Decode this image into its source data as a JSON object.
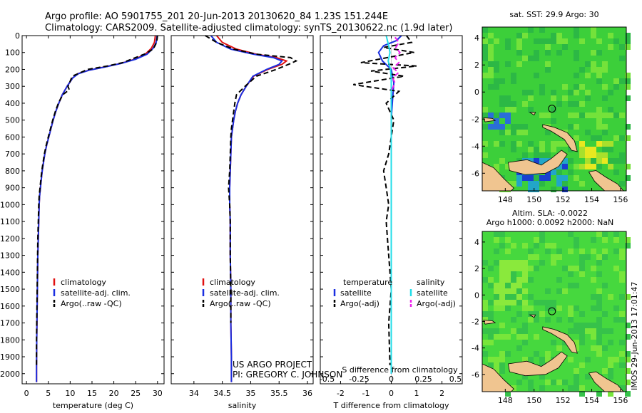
{
  "title": {
    "line1": "Argo profile: AO 5901755_201 20-Jun-2013 20130620_84 1.23S 151.244E",
    "line2": "Climatology: CARS2009. Satellite-adjusted climatology: synTS_20130622.nc (1.9d later)"
  },
  "credit": {
    "project": "US ARGO PROJECT",
    "pi": "PI: GREGORY C. JOHNSON"
  },
  "stamp": "IMOS 29-Jun-2013 17:01:47",
  "colors": {
    "climatology": "#e01010",
    "satellite": "#1a2ee0",
    "argo": "#000000",
    "sal_satellite": "#22dde8",
    "sal_argo": "#ee22ee",
    "land": "#f0c590",
    "ocean_mid": "#3fd13c"
  },
  "depth_axis": {
    "ticks": [
      0,
      100,
      200,
      300,
      400,
      500,
      600,
      700,
      800,
      900,
      1000,
      1100,
      1200,
      1300,
      1400,
      1500,
      1600,
      1700,
      1800,
      1900,
      2000
    ],
    "range": [
      0,
      2060
    ]
  },
  "chart_data": [
    {
      "type": "line",
      "title": "",
      "xlabel": "temperature (deg C)",
      "ylabel": "",
      "xlim": [
        -1,
        31.5
      ],
      "ylim": [
        2060,
        0
      ],
      "xticks": [
        0,
        5,
        10,
        15,
        20,
        25,
        30
      ],
      "legend": [
        "climatology",
        "satellite-adj. clim.",
        "Argo(..raw -QC)"
      ],
      "legend_position": "lower-center",
      "series": [
        {
          "name": "climatology",
          "x": [
            29.5,
            29.3,
            28.6,
            27.2,
            24.8,
            21.5,
            18.0,
            14.2,
            11.8,
            10.6,
            9.3,
            8.2,
            7.4,
            6.7,
            6.1,
            5.6,
            5.1,
            4.6,
            4.2,
            3.9,
            3.6,
            3.4,
            3.2,
            3.0,
            2.9,
            2.8,
            2.7,
            2.6,
            2.55,
            2.5,
            2.45,
            2.4,
            2.35,
            2.3,
            2.3
          ],
          "y": [
            0,
            40,
            75,
            110,
            140,
            165,
            185,
            205,
            225,
            250,
            300,
            350,
            400,
            450,
            500,
            550,
            600,
            650,
            700,
            750,
            800,
            850,
            900,
            950,
            1000,
            1100,
            1200,
            1300,
            1400,
            1500,
            1600,
            1700,
            1800,
            1950,
            2050
          ]
        },
        {
          "name": "satellite-adj. clim.",
          "x": [
            29.9,
            29.7,
            29.0,
            27.6,
            25.0,
            21.6,
            18.1,
            14.3,
            11.9,
            10.6,
            9.3,
            8.2,
            7.4,
            6.7,
            6.1,
            5.6,
            5.1,
            4.6,
            4.2,
            3.9,
            3.6,
            3.4,
            3.2,
            3.0,
            2.9,
            2.8,
            2.7,
            2.6,
            2.55,
            2.5,
            2.45,
            2.4,
            2.35,
            2.3,
            2.3
          ],
          "y": [
            0,
            40,
            75,
            110,
            140,
            165,
            185,
            205,
            225,
            250,
            300,
            350,
            400,
            450,
            500,
            550,
            600,
            650,
            700,
            750,
            800,
            850,
            900,
            950,
            1000,
            1100,
            1200,
            1300,
            1400,
            1500,
            1600,
            1700,
            1800,
            1950,
            2050
          ]
        },
        {
          "name": "Argo(..raw -QC)",
          "x": [
            30.0,
            29.8,
            29.0,
            27.0,
            24.0,
            22.0,
            18.5,
            14.0,
            10.5,
            9.5,
            9.8,
            8.3,
            7.3,
            6.6,
            6.0,
            5.5,
            5.0,
            4.5,
            4.1,
            3.8,
            3.5,
            3.3,
            3.1,
            2.9,
            2.8,
            2.7,
            2.6,
            2.55,
            2.5,
            2.45,
            2.4,
            2.35,
            2.3,
            2.3
          ],
          "y": [
            0,
            40,
            80,
            110,
            140,
            160,
            180,
            200,
            240,
            300,
            320,
            350,
            400,
            450,
            500,
            550,
            600,
            650,
            700,
            750,
            800,
            850,
            900,
            950,
            1000,
            1100,
            1200,
            1300,
            1400,
            1500,
            1600,
            1700,
            1800,
            1950
          ]
        }
      ]
    },
    {
      "type": "line",
      "title": "",
      "xlabel": "salinity",
      "ylabel": "",
      "xlim": [
        33.6,
        36.1
      ],
      "ylim": [
        2060,
        0
      ],
      "xticks": [
        34,
        34.5,
        35,
        35.5,
        36
      ],
      "legend": [
        "climatology",
        "satellite-adj. clim.",
        "Argo(..raw -QC)"
      ],
      "legend_position": "lower-center",
      "series": [
        {
          "name": "climatology",
          "x": [
            34.4,
            34.5,
            34.75,
            35.1,
            35.45,
            35.63,
            35.55,
            35.3,
            35.05,
            34.92,
            34.83,
            34.77,
            34.73,
            34.7,
            34.68,
            34.66,
            34.65,
            34.64,
            34.63,
            34.63,
            34.64,
            34.64,
            34.65,
            34.65,
            34.66,
            34.66
          ],
          "y": [
            0,
            40,
            80,
            110,
            130,
            150,
            170,
            200,
            240,
            300,
            350,
            400,
            450,
            500,
            550,
            600,
            700,
            800,
            900,
            1000,
            1100,
            1300,
            1500,
            1700,
            1900,
            2050
          ]
        },
        {
          "name": "satellite-adj. clim.",
          "x": [
            34.3,
            34.4,
            34.65,
            35.05,
            35.4,
            35.55,
            35.5,
            35.28,
            35.04,
            34.92,
            34.83,
            34.77,
            34.73,
            34.7,
            34.68,
            34.66,
            34.65,
            34.64,
            34.63,
            34.63,
            34.64,
            34.64,
            34.65,
            34.65,
            34.66,
            34.66
          ],
          "y": [
            0,
            40,
            80,
            110,
            130,
            150,
            170,
            200,
            240,
            300,
            350,
            400,
            450,
            500,
            550,
            600,
            700,
            800,
            900,
            1000,
            1100,
            1300,
            1500,
            1700,
            1900,
            2050
          ]
        },
        {
          "name": "Argo(..raw -QC)",
          "x": [
            34.2,
            34.4,
            34.7,
            35.1,
            35.7,
            35.8,
            35.7,
            35.45,
            35.1,
            34.9,
            34.75,
            34.72,
            34.7,
            34.68,
            34.66,
            34.65,
            34.64,
            34.63,
            34.61,
            34.63,
            34.64,
            34.64,
            34.65,
            34.65
          ],
          "y": [
            0,
            40,
            80,
            110,
            130,
            150,
            165,
            200,
            240,
            300,
            350,
            400,
            450,
            500,
            550,
            600,
            700,
            800,
            900,
            1000,
            1100,
            1300,
            1500,
            1700
          ]
        }
      ]
    },
    {
      "type": "line",
      "title": "",
      "xlabel": "T difference from climatology",
      "xlabel_top": "S difference from climatology",
      "ylabel": "",
      "xlim": [
        -2.8,
        2.8
      ],
      "ylim": [
        2060,
        0
      ],
      "xticks": [
        -2,
        -1,
        0,
        1,
        2
      ],
      "xticks_top": [
        -0.5,
        -0.25,
        0,
        0.25,
        0.5
      ],
      "legend_temperature_heading": "temperature",
      "legend_salinity_heading": "salinity",
      "legend": [
        "satellite",
        "Argo(-adj)",
        "satellite",
        "Argo(-adj)"
      ],
      "legend_position": "lower-center",
      "series": [
        {
          "name": "temperature satellite",
          "x": [
            0.4,
            0.2,
            -0.3,
            -0.5,
            -0.35,
            0.0,
            0.1,
            0.05,
            0.02,
            0.0,
            0.0,
            0.0,
            0.0,
            0.0,
            0.0,
            0.0,
            0.0,
            0.0,
            0.0
          ],
          "y": [
            0,
            30,
            60,
            100,
            150,
            200,
            280,
            380,
            450,
            500,
            600,
            800,
            1000,
            1200,
            1400,
            1600,
            1800,
            1900,
            2000
          ]
        },
        {
          "name": "temperature Argo(-adj)",
          "x": [
            0.6,
            0.8,
            -0.3,
            0.9,
            -1.2,
            1.0,
            -0.8,
            0.5,
            -1.5,
            0.3,
            -0.2,
            0.1,
            0.0,
            -0.1,
            -0.3,
            -0.2,
            -0.1,
            -0.2,
            -0.1,
            0.0,
            -0.1,
            -0.05
          ],
          "y": [
            0,
            40,
            70,
            100,
            160,
            180,
            210,
            240,
            290,
            330,
            400,
            500,
            600,
            700,
            800,
            900,
            1000,
            1100,
            1300,
            1500,
            1700,
            1950
          ]
        },
        {
          "name": "salinity satellite",
          "x": [
            -0.2,
            -0.1,
            -0.05,
            -0.12,
            -0.03,
            0.0,
            0.0,
            0.0,
            0.0,
            0.0,
            0.0,
            0.0,
            0.0,
            0.0
          ],
          "y": [
            0,
            60,
            100,
            150,
            200,
            260,
            350,
            500,
            800,
            1100,
            1400,
            1700,
            1900,
            2000
          ]
        },
        {
          "name": "salinity Argo(-adj)",
          "x": [
            0.15,
            0.3,
            0.18,
            0.34,
            0.15,
            0.3,
            0.08,
            0.28,
            0.05,
            0.15,
            0.02
          ],
          "y": [
            10,
            40,
            70,
            100,
            130,
            160,
            190,
            220,
            250,
            280,
            320
          ]
        }
      ]
    }
  ],
  "maps": [
    {
      "title": "sat. SST: 29.9 Argo: 30",
      "title_line2": "",
      "xticks": [
        148,
        150,
        152,
        154,
        156
      ],
      "yticks": [
        4,
        2,
        0,
        -2,
        -4,
        -6
      ],
      "xlim": [
        146.4,
        156.4
      ],
      "ylim": [
        -7.3,
        4.8
      ],
      "argo_marker": {
        "lon": 151.24,
        "lat": -1.23
      },
      "field": "SST"
    },
    {
      "title": "Altim. SLA: -0.0022",
      "title_line2": "Argo h1000: 0.0092 h2000: NaN",
      "xticks": [
        148,
        150,
        152,
        154,
        156
      ],
      "yticks": [
        4,
        2,
        0,
        -2,
        -4,
        -6
      ],
      "xlim": [
        146.4,
        156.4
      ],
      "ylim": [
        -7.3,
        4.8
      ],
      "argo_marker": {
        "lon": 151.24,
        "lat": -1.23
      },
      "field": "SLA"
    }
  ]
}
